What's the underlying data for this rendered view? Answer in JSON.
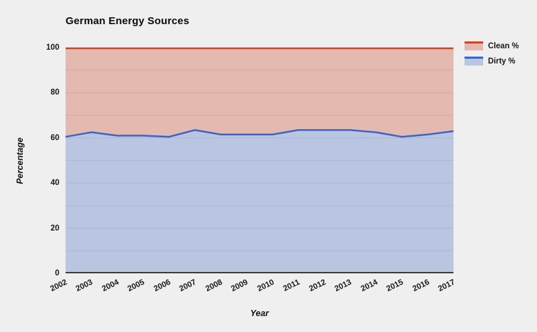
{
  "page": {
    "background_color": "#efefef"
  },
  "chart_data": {
    "type": "area",
    "stacked": true,
    "stack_total": 100,
    "title": "German Energy Sources",
    "xlabel": "Year",
    "ylabel": "Percentage",
    "categories": [
      2002,
      2003,
      2004,
      2005,
      2006,
      2007,
      2008,
      2009,
      2010,
      2011,
      2012,
      2013,
      2014,
      2015,
      2016,
      2017
    ],
    "series": [
      {
        "name": "Clean %",
        "values": [
          39.5,
          37.5,
          39,
          39,
          39.5,
          36.5,
          38.5,
          38.5,
          38.5,
          36.5,
          36.5,
          36.5,
          37.5,
          39.5,
          38.5,
          37
        ],
        "line_color": "#cc4527",
        "fill_color": "rgba(205,70,40,0.32)"
      },
      {
        "name": "Dirty %",
        "values": [
          60.5,
          62.5,
          61,
          61,
          60.5,
          63.5,
          61.5,
          61.5,
          61.5,
          63.5,
          63.5,
          63.5,
          62.5,
          60.5,
          61.5,
          63
        ],
        "line_color": "#3d63c4",
        "fill_color": "rgba(90,120,200,0.35)"
      }
    ],
    "ylim": [
      0,
      100
    ],
    "yticks": [
      0,
      20,
      40,
      60,
      80,
      100
    ],
    "minor_grid_step": 10,
    "grid": true,
    "grid_color": "#d7d7d7",
    "axis_line_color": "#3a3a3a",
    "legend_position": "top-right"
  }
}
